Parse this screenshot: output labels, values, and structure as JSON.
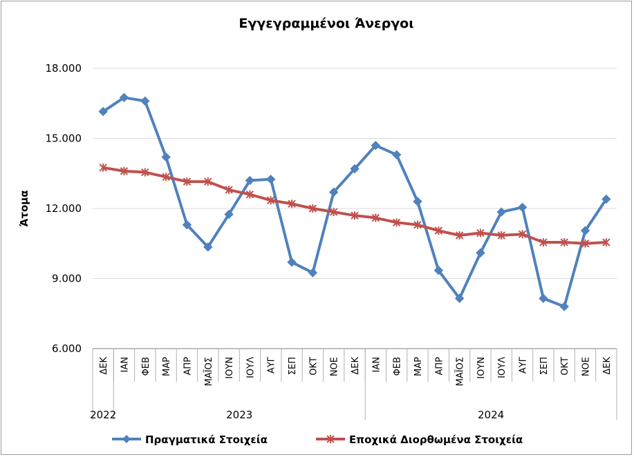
{
  "chart_data": {
    "type": "line",
    "title": "Εγγεγραμμένοι Άνεργοι",
    "ylabel": "Άτομα",
    "xlabel": "",
    "ylim": [
      6000,
      18000
    ],
    "yticks": [
      6000,
      9000,
      12000,
      15000,
      18000
    ],
    "ytick_labels": [
      "6.000",
      "9.000",
      "12.000",
      "15.000",
      "18.000"
    ],
    "grid": true,
    "legend_position": "bottom",
    "categories": [
      "ΔΕΚ",
      "ΙΑΝ",
      "ΦΕΒ",
      "ΜΑΡ",
      "ΑΠΡ",
      "ΜΑΪΟΣ",
      "ΙΟΥΝ",
      "ΙΟΥΛ",
      "ΑΥΓ",
      "ΣΕΠ",
      "ΟΚΤ",
      "ΝΟΕ",
      "ΔΕΚ",
      "ΙΑΝ",
      "ΦΕΒ",
      "ΜΑΡ",
      "ΑΠΡ",
      "ΜΑΪΟΣ",
      "ΙΟΥΝ",
      "ΙΟΥΛ",
      "ΑΥΓ",
      "ΣΕΠ",
      "ΟΚΤ",
      "ΝΟΕ",
      "ΔΕΚ"
    ],
    "year_groups": [
      {
        "label": "2022",
        "count": 1
      },
      {
        "label": "2023",
        "count": 12
      },
      {
        "label": "2024",
        "count": 12
      }
    ],
    "series": [
      {
        "name": "Πραγματικά Στοιχεία",
        "color": "#4f81bd",
        "marker": "diamond",
        "values": [
          16150,
          16750,
          16600,
          14200,
          11300,
          10350,
          11750,
          13200,
          13250,
          9700,
          9250,
          12700,
          13700,
          14700,
          14300,
          12300,
          9350,
          8150,
          10100,
          11850,
          12050,
          8150,
          7800,
          11050,
          12400
        ]
      },
      {
        "name": "Εποχικά Διορθωμένα Στοιχεία",
        "color": "#c0504d",
        "marker": "star",
        "values": [
          13750,
          13600,
          13550,
          13350,
          13150,
          13150,
          12800,
          12600,
          12350,
          12200,
          12000,
          11850,
          11700,
          11600,
          11400,
          11300,
          11050,
          10850,
          10950,
          10850,
          10900,
          10550,
          10550,
          10500,
          10550
        ]
      }
    ]
  }
}
